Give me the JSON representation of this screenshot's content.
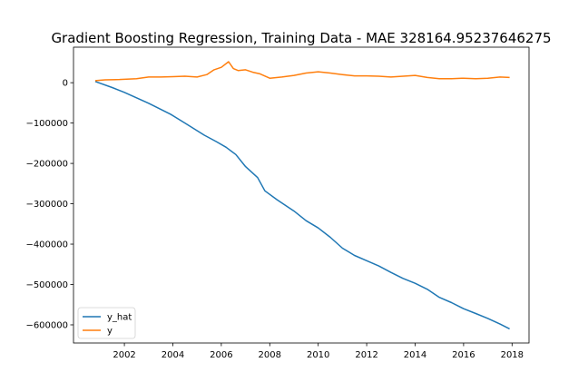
{
  "chart_data": {
    "type": "line",
    "title": "Gradient Boosting Regression, Training Data - MAE 328164.95237646275",
    "xlabel": "",
    "ylabel": "",
    "xlim": [
      1999.9,
      2018.7
    ],
    "ylim": [
      -645000,
      88000
    ],
    "xticks": [
      2002,
      2004,
      2006,
      2008,
      2010,
      2012,
      2014,
      2016,
      2018
    ],
    "xtick_labels": [
      "2002",
      "2004",
      "2006",
      "2008",
      "2010",
      "2012",
      "2014",
      "2016",
      "2018"
    ],
    "yticks": [
      0,
      -100000,
      -200000,
      -300000,
      -400000,
      -500000,
      -600000
    ],
    "ytick_labels": [
      "0",
      "−100000",
      "−200000",
      "−300000",
      "−400000",
      "−500000",
      "−600000"
    ],
    "grid": false,
    "legend_position": "lower-left",
    "series": [
      {
        "name": "y_hat",
        "color": "#1f77b4",
        "x": [
          2000.8,
          2001.5,
          2002.0,
          2003.0,
          2003.9,
          2004.5,
          2005.3,
          2005.8,
          2006.2,
          2006.6,
          2007.0,
          2007.5,
          2007.8,
          2008.3,
          2009.0,
          2009.5,
          2010.0,
          2010.5,
          2011.0,
          2011.5,
          2012.0,
          2012.5,
          2013.0,
          2013.5,
          2014.0,
          2014.5,
          2015.0,
          2015.5,
          2016.0,
          2016.5,
          2017.0,
          2017.5,
          2017.9
        ],
        "values": [
          3000,
          -12000,
          -24000,
          -51000,
          -78000,
          -100000,
          -130000,
          -146000,
          -160000,
          -178000,
          -208000,
          -235000,
          -268000,
          -290000,
          -318000,
          -342000,
          -360000,
          -383000,
          -410000,
          -428000,
          -441000,
          -454000,
          -470000,
          -485000,
          -497000,
          -512000,
          -532000,
          -545000,
          -560000,
          -572000,
          -584000,
          -598000,
          -610000
        ]
      },
      {
        "name": "y",
        "color": "#ff7f0e",
        "x": [
          2000.8,
          2001.2,
          2001.8,
          2002.5,
          2003.0,
          2003.5,
          2004.0,
          2004.5,
          2005.0,
          2005.4,
          2005.7,
          2006.0,
          2006.3,
          2006.5,
          2006.7,
          2007.0,
          2007.3,
          2007.6,
          2008.0,
          2008.5,
          2009.0,
          2009.5,
          2010.0,
          2010.5,
          2011.0,
          2011.5,
          2012.0,
          2012.5,
          2013.0,
          2013.5,
          2014.0,
          2014.5,
          2015.0,
          2015.5,
          2016.0,
          2016.5,
          2017.0,
          2017.5,
          2017.9
        ],
        "values": [
          5000,
          7000,
          8000,
          10000,
          14000,
          14000,
          15000,
          16000,
          14000,
          20000,
          32000,
          38000,
          52000,
          35000,
          30000,
          32000,
          26000,
          22000,
          11000,
          14000,
          18000,
          24000,
          27000,
          24000,
          20000,
          17000,
          17000,
          16000,
          14000,
          16000,
          18000,
          13000,
          10000,
          10000,
          11000,
          10000,
          11000,
          14000,
          13000
        ]
      }
    ]
  }
}
